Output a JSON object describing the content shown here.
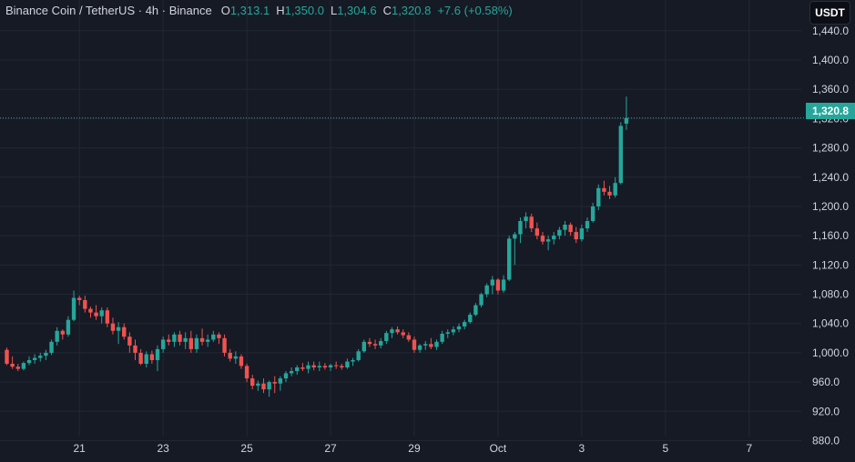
{
  "legend": {
    "symbol": "Binance Coin / TetherUS",
    "interval": "4h",
    "exchange": "Binance",
    "open_label": "O",
    "open": "1,313.1",
    "high_label": "H",
    "high": "1,350.0",
    "low_label": "L",
    "low": "1,304.6",
    "close_label": "C",
    "close": "1,320.8",
    "change": "+7.6 (+0.58%)"
  },
  "unit": "USDT",
  "last_price": "1,320.8",
  "colors": {
    "up": "#26a69a",
    "down": "#ef5350",
    "background": "#161a25",
    "grid": "#232734",
    "text": "#d1d4dc"
  },
  "chart_data": {
    "type": "candlestick",
    "y_ticks": [
      "880.0",
      "920.0",
      "960.0",
      "1,000.0",
      "1,040.0",
      "1,080.0",
      "1,120.0",
      "1,160.0",
      "1,200.0",
      "1,240.0",
      "1,280.0",
      "1,320.0",
      "1,360.0",
      "1,400.0",
      "1,440.0"
    ],
    "y_tick_values": [
      880,
      920,
      960,
      1000,
      1040,
      1080,
      1120,
      1160,
      1200,
      1240,
      1280,
      1320,
      1360,
      1400,
      1440
    ],
    "ylim": [
      857,
      1482
    ],
    "x_ticks": [
      {
        "label": "21",
        "index": 13
      },
      {
        "label": "23",
        "index": 28
      },
      {
        "label": "25",
        "index": 43
      },
      {
        "label": "27",
        "index": 58
      },
      {
        "label": "29",
        "index": 73
      },
      {
        "label": "Oct",
        "index": 88
      },
      {
        "label": "3",
        "index": 103
      },
      {
        "label": "5",
        "index": 118
      },
      {
        "label": "7",
        "index": 133
      }
    ],
    "last_price_value": 1320.8,
    "grid": true,
    "candles": [
      [
        1004,
        1007,
        983,
        985
      ],
      [
        985,
        995,
        978,
        981
      ],
      [
        981,
        985,
        975,
        978
      ],
      [
        978,
        988,
        976,
        986
      ],
      [
        986,
        995,
        983,
        990
      ],
      [
        990,
        998,
        985,
        993
      ],
      [
        993,
        1000,
        988,
        996
      ],
      [
        996,
        1004,
        990,
        1000
      ],
      [
        1000,
        1018,
        997,
        1015
      ],
      [
        1015,
        1035,
        1010,
        1030
      ],
      [
        1030,
        1032,
        1018,
        1025
      ],
      [
        1025,
        1050,
        1022,
        1045
      ],
      [
        1045,
        1085,
        1043,
        1075
      ],
      [
        1075,
        1078,
        1065,
        1072
      ],
      [
        1072,
        1078,
        1055,
        1060
      ],
      [
        1060,
        1063,
        1048,
        1055
      ],
      [
        1055,
        1065,
        1045,
        1050
      ],
      [
        1050,
        1062,
        1040,
        1058
      ],
      [
        1058,
        1062,
        1035,
        1040
      ],
      [
        1040,
        1048,
        1025,
        1030
      ],
      [
        1030,
        1042,
        1012,
        1035
      ],
      [
        1035,
        1040,
        1018,
        1022
      ],
      [
        1022,
        1028,
        1000,
        1010
      ],
      [
        1010,
        1018,
        990,
        1000
      ],
      [
        1000,
        1005,
        983,
        985
      ],
      [
        985,
        1002,
        980,
        998
      ],
      [
        998,
        1003,
        985,
        990
      ],
      [
        990,
        1010,
        975,
        1005
      ],
      [
        1005,
        1022,
        1000,
        1018
      ],
      [
        1018,
        1025,
        1010,
        1015
      ],
      [
        1015,
        1028,
        1008,
        1025
      ],
      [
        1025,
        1030,
        1010,
        1015
      ],
      [
        1015,
        1028,
        1005,
        1020
      ],
      [
        1020,
        1030,
        1000,
        1005
      ],
      [
        1005,
        1025,
        1000,
        1020
      ],
      [
        1020,
        1033,
        1010,
        1015
      ],
      [
        1015,
        1025,
        1008,
        1018
      ],
      [
        1018,
        1030,
        1015,
        1025
      ],
      [
        1025,
        1028,
        1012,
        1020
      ],
      [
        1020,
        1025,
        995,
        1000
      ],
      [
        1000,
        1005,
        988,
        992
      ],
      [
        992,
        1002,
        985,
        995
      ],
      [
        995,
        998,
        978,
        982
      ],
      [
        982,
        985,
        960,
        965
      ],
      [
        965,
        970,
        950,
        955
      ],
      [
        955,
        962,
        948,
        958
      ],
      [
        958,
        965,
        945,
        950
      ],
      [
        950,
        962,
        940,
        960
      ],
      [
        960,
        968,
        945,
        958
      ],
      [
        958,
        968,
        948,
        965
      ],
      [
        965,
        975,
        960,
        972
      ],
      [
        972,
        980,
        968,
        975
      ],
      [
        975,
        983,
        970,
        980
      ],
      [
        980,
        986,
        975,
        978
      ],
      [
        978,
        988,
        972,
        983
      ],
      [
        983,
        988,
        976,
        980
      ],
      [
        980,
        988,
        975,
        982
      ],
      [
        982,
        986,
        977,
        980
      ],
      [
        980,
        985,
        975,
        983
      ],
      [
        983,
        988,
        978,
        982
      ],
      [
        982,
        985,
        977,
        980
      ],
      [
        980,
        992,
        978,
        988
      ],
      [
        988,
        993,
        982,
        990
      ],
      [
        990,
        1005,
        988,
        1002
      ],
      [
        1002,
        1018,
        1000,
        1015
      ],
      [
        1015,
        1020,
        1008,
        1012
      ],
      [
        1012,
        1018,
        1005,
        1010
      ],
      [
        1010,
        1020,
        1006,
        1016
      ],
      [
        1016,
        1030,
        1012,
        1027
      ],
      [
        1027,
        1035,
        1020,
        1032
      ],
      [
        1032,
        1036,
        1025,
        1028
      ],
      [
        1028,
        1032,
        1020,
        1024
      ],
      [
        1024,
        1028,
        1015,
        1018
      ],
      [
        1018,
        1022,
        1000,
        1004
      ],
      [
        1004,
        1012,
        1000,
        1010
      ],
      [
        1010,
        1016,
        1004,
        1012
      ],
      [
        1012,
        1020,
        1005,
        1008
      ],
      [
        1008,
        1018,
        1004,
        1015
      ],
      [
        1015,
        1030,
        1012,
        1026
      ],
      [
        1026,
        1032,
        1020,
        1028
      ],
      [
        1028,
        1036,
        1024,
        1032
      ],
      [
        1032,
        1040,
        1028,
        1036
      ],
      [
        1036,
        1045,
        1032,
        1042
      ],
      [
        1042,
        1055,
        1040,
        1052
      ],
      [
        1052,
        1068,
        1050,
        1065
      ],
      [
        1065,
        1082,
        1062,
        1080
      ],
      [
        1080,
        1095,
        1076,
        1092
      ],
      [
        1092,
        1105,
        1080,
        1100
      ],
      [
        1100,
        1102,
        1080,
        1085
      ],
      [
        1085,
        1106,
        1082,
        1100
      ],
      [
        1100,
        1160,
        1098,
        1156
      ],
      [
        1156,
        1165,
        1120,
        1162
      ],
      [
        1162,
        1185,
        1150,
        1180
      ],
      [
        1180,
        1192,
        1170,
        1186
      ],
      [
        1186,
        1190,
        1165,
        1170
      ],
      [
        1170,
        1178,
        1155,
        1160
      ],
      [
        1160,
        1165,
        1148,
        1152
      ],
      [
        1152,
        1160,
        1140,
        1155
      ],
      [
        1155,
        1165,
        1148,
        1160
      ],
      [
        1160,
        1172,
        1155,
        1168
      ],
      [
        1168,
        1180,
        1160,
        1175
      ],
      [
        1175,
        1178,
        1160,
        1165
      ],
      [
        1165,
        1172,
        1150,
        1155
      ],
      [
        1155,
        1175,
        1152,
        1170
      ],
      [
        1170,
        1185,
        1165,
        1180
      ],
      [
        1180,
        1205,
        1178,
        1200
      ],
      [
        1200,
        1230,
        1195,
        1225
      ],
      [
        1225,
        1235,
        1215,
        1220
      ],
      [
        1220,
        1228,
        1210,
        1215
      ],
      [
        1215,
        1240,
        1212,
        1232
      ],
      [
        1232,
        1315,
        1230,
        1310
      ],
      [
        1313.1,
        1350,
        1304.6,
        1320.8
      ]
    ]
  }
}
